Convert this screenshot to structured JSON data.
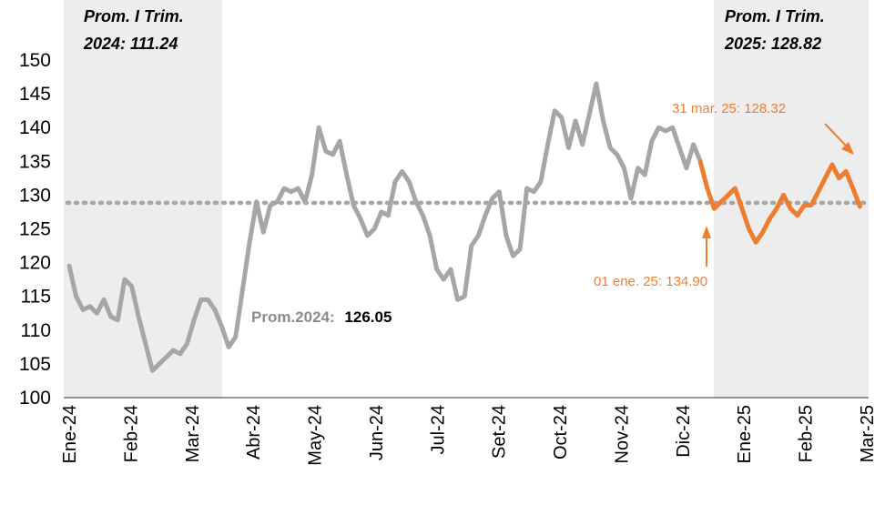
{
  "chart_data": {
    "type": "line",
    "title": "",
    "xlabel": "",
    "ylabel": "",
    "ylim": [
      100,
      150
    ],
    "yticks": [
      100,
      105,
      110,
      115,
      120,
      125,
      130,
      135,
      140,
      145,
      150
    ],
    "x_tick_labels": [
      "Ene-24",
      "Feb-24",
      "Mar-24",
      "Abr-24",
      "May-24",
      "Jun-24",
      "Jul-24",
      "Set-24",
      "Oct-24",
      "Nov-24",
      "Dic-24",
      "Ene-25",
      "Feb-25",
      "Mar-25"
    ],
    "grid": false,
    "colors": {
      "series_2024": "#A6A6A6",
      "series_2025": "#ED7D31",
      "average_line": "#A6A6A6",
      "shaded_quarter": "#EDEDED"
    },
    "series": [
      {
        "values": [
          119.5,
          115,
          113,
          113.5,
          112.5,
          114.5,
          112,
          111.5,
          117.5,
          116.5,
          112,
          108,
          104,
          105,
          106,
          107,
          106.5,
          108,
          111.5,
          114.5,
          114.5,
          113,
          110.5,
          107.5,
          109,
          116,
          123,
          129,
          124.5,
          128.5,
          129,
          131,
          130.5,
          131,
          129,
          133,
          140,
          136.5,
          136,
          138,
          133,
          128.5,
          126.5,
          124,
          125,
          127.5,
          127,
          132,
          133.5,
          132,
          129,
          127,
          124,
          119,
          117.5,
          119,
          114.5,
          115,
          122.5,
          124,
          127,
          129.5,
          130.5,
          124,
          121,
          122,
          131,
          130.5,
          132,
          137.5,
          142.5,
          141.5,
          137,
          141,
          137.5,
          142,
          146.5,
          141,
          137,
          136,
          134,
          129.5,
          134,
          133,
          138,
          140,
          139.5,
          140,
          137,
          134,
          137.5,
          135
        ]
      },
      {
        "values": [
          134.9,
          131,
          128,
          129,
          130,
          131,
          128,
          125,
          123,
          124.5,
          126.5,
          128,
          130,
          128,
          127,
          128.5,
          128.5,
          130.5,
          132.5,
          134.5,
          132.5,
          133.5,
          131,
          128.32
        ]
      }
    ],
    "average_2024": 126.05,
    "average_label": "Prom.2024:",
    "average_value_label": "126.05",
    "annotations": [
      {
        "text": "31 mar. 25: 128.32",
        "target": 128.32
      },
      {
        "text": "01 ene. 25: 134.90",
        "target": 134.9
      }
    ],
    "quarter_boxes": [
      {
        "line1": "Prom. I Trim.",
        "line2": "2024: 111.24"
      },
      {
        "line1": "Prom. I Trim.",
        "line2": "2025: 128.82"
      }
    ]
  }
}
